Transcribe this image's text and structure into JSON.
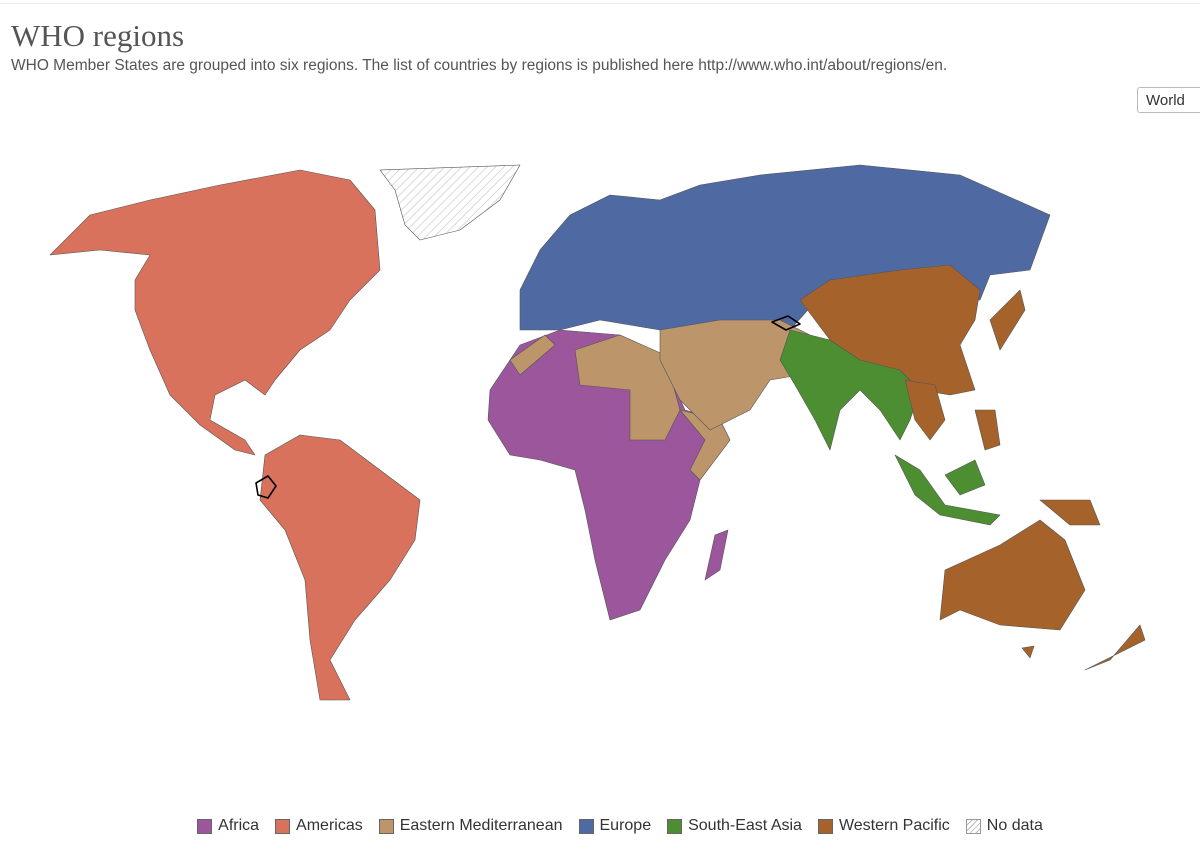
{
  "header": {
    "title": "WHO regions",
    "subtitle": "WHO Member States are grouped into six regions. The list of countries by regions is published here http://www.who.int/about/regions/en."
  },
  "controls": {
    "region_select": "World"
  },
  "legend": {
    "items": [
      {
        "label": "Africa",
        "color": "#9b569c"
      },
      {
        "label": "Americas",
        "color": "#d9725c"
      },
      {
        "label": "Eastern Mediterranean",
        "color": "#bc956a"
      },
      {
        "label": "Europe",
        "color": "#4f69a3"
      },
      {
        "label": "South-East Asia",
        "color": "#4c8e31"
      },
      {
        "label": "Western Pacific",
        "color": "#a5632b"
      },
      {
        "label": "No data"
      }
    ]
  }
}
